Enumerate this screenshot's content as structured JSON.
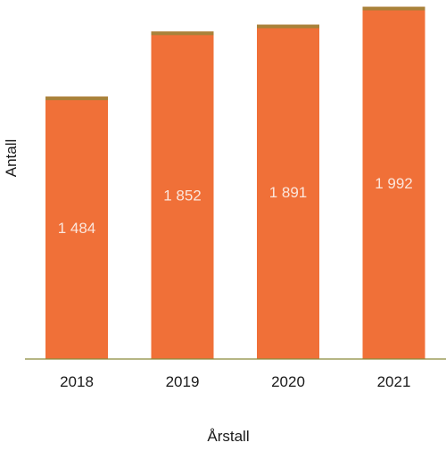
{
  "chart_data": {
    "type": "bar",
    "categories": [
      "2018",
      "2019",
      "2020",
      "2021"
    ],
    "values": [
      1484,
      1852,
      1891,
      1992
    ],
    "value_labels": [
      "1 484",
      "1 852",
      "1 891",
      "1 992"
    ],
    "xlabel": "Årstall",
    "ylabel": "Antall",
    "ylim": [
      0,
      2000
    ],
    "grid": false,
    "bar_color": "#f07038",
    "bar_top_color": "#a8823a",
    "axis_color": "#8a8a3a"
  }
}
